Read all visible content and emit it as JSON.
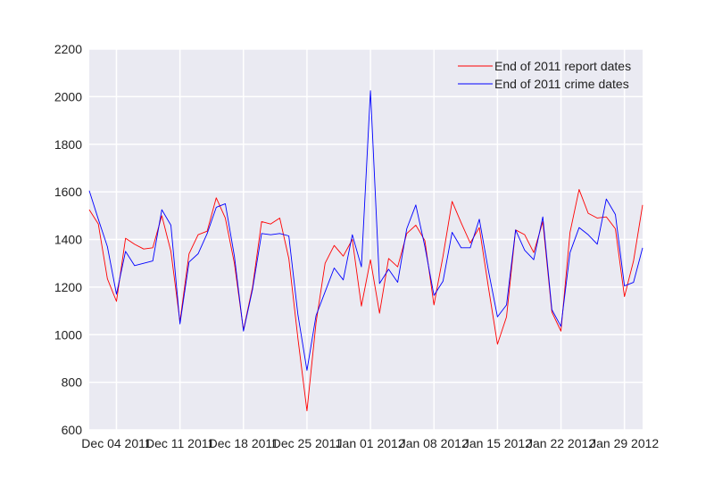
{
  "chart_data": {
    "type": "line",
    "title": "",
    "xlabel": "",
    "ylabel": "",
    "x": [
      "2011-12-01",
      "2011-12-02",
      "2011-12-03",
      "2011-12-04",
      "2011-12-05",
      "2011-12-06",
      "2011-12-07",
      "2011-12-08",
      "2011-12-09",
      "2011-12-10",
      "2011-12-11",
      "2011-12-12",
      "2011-12-13",
      "2011-12-14",
      "2011-12-15",
      "2011-12-16",
      "2011-12-17",
      "2011-12-18",
      "2011-12-19",
      "2011-12-20",
      "2011-12-21",
      "2011-12-22",
      "2011-12-23",
      "2011-12-24",
      "2011-12-25",
      "2011-12-26",
      "2011-12-27",
      "2011-12-28",
      "2011-12-29",
      "2011-12-30",
      "2011-12-31",
      "2012-01-01",
      "2012-01-02",
      "2012-01-03",
      "2012-01-04",
      "2012-01-05",
      "2012-01-06",
      "2012-01-07",
      "2012-01-08",
      "2012-01-09",
      "2012-01-10",
      "2012-01-11",
      "2012-01-12",
      "2012-01-13",
      "2012-01-14",
      "2012-01-15",
      "2012-01-16",
      "2012-01-17",
      "2012-01-18",
      "2012-01-19",
      "2012-01-20",
      "2012-01-21",
      "2012-01-22",
      "2012-01-23",
      "2012-01-24",
      "2012-01-25",
      "2012-01-26",
      "2012-01-27",
      "2012-01-28",
      "2012-01-29",
      "2012-01-30",
      "2012-01-31"
    ],
    "series": [
      {
        "name": "End of 2011 report dates",
        "color": "#ff0000",
        "values": [
          1525,
          1465,
          1235,
          1140,
          1405,
          1380,
          1360,
          1365,
          1500,
          1350,
          1055,
          1340,
          1420,
          1435,
          1575,
          1490,
          1300,
          1020,
          1200,
          1475,
          1465,
          1490,
          1320,
          985,
          680,
          1050,
          1300,
          1375,
          1330,
          1400,
          1120,
          1315,
          1090,
          1320,
          1285,
          1425,
          1460,
          1395,
          1125,
          1330,
          1560,
          1470,
          1385,
          1450,
          1200,
          960,
          1075,
          1440,
          1420,
          1345,
          1475,
          1095,
          1015,
          1430,
          1610,
          1510,
          1490,
          1495,
          1445,
          1160,
          1310,
          1545
        ]
      },
      {
        "name": "End of 2011 crime dates",
        "color": "#0000ff",
        "values": [
          1605,
          1485,
          1370,
          1170,
          1350,
          1290,
          1300,
          1310,
          1525,
          1460,
          1045,
          1305,
          1340,
          1425,
          1535,
          1550,
          1330,
          1015,
          1190,
          1425,
          1420,
          1425,
          1415,
          1085,
          850,
          1080,
          1180,
          1280,
          1230,
          1420,
          1285,
          2025,
          1215,
          1275,
          1220,
          1445,
          1545,
          1370,
          1165,
          1225,
          1430,
          1365,
          1365,
          1485,
          1270,
          1075,
          1125,
          1440,
          1355,
          1315,
          1495,
          1105,
          1035,
          1345,
          1450,
          1420,
          1380,
          1570,
          1505,
          1205,
          1220,
          1365
        ]
      }
    ],
    "ylim": [
      600,
      2200
    ],
    "yticks": [
      600,
      800,
      1000,
      1200,
      1400,
      1600,
      1800,
      2000,
      2200
    ],
    "xticks": [
      "2011-12-04",
      "2011-12-11",
      "2011-12-18",
      "2011-12-25",
      "2012-01-01",
      "2012-01-08",
      "2012-01-15",
      "2012-01-22",
      "2012-01-29"
    ],
    "xtick_labels": [
      "Dec 04 2011",
      "Dec 11 2011",
      "Dec 18 2011",
      "Dec 25 2011",
      "Jan 01 2012",
      "Jan 08 2012",
      "Jan 15 2012",
      "Jan 22 2012",
      "Jan 29 2012"
    ],
    "grid": true,
    "legend_position": "top-right",
    "colors": {
      "plot_background": "#eaeaf2",
      "grid": "#ffffff",
      "text": "#222222"
    }
  }
}
